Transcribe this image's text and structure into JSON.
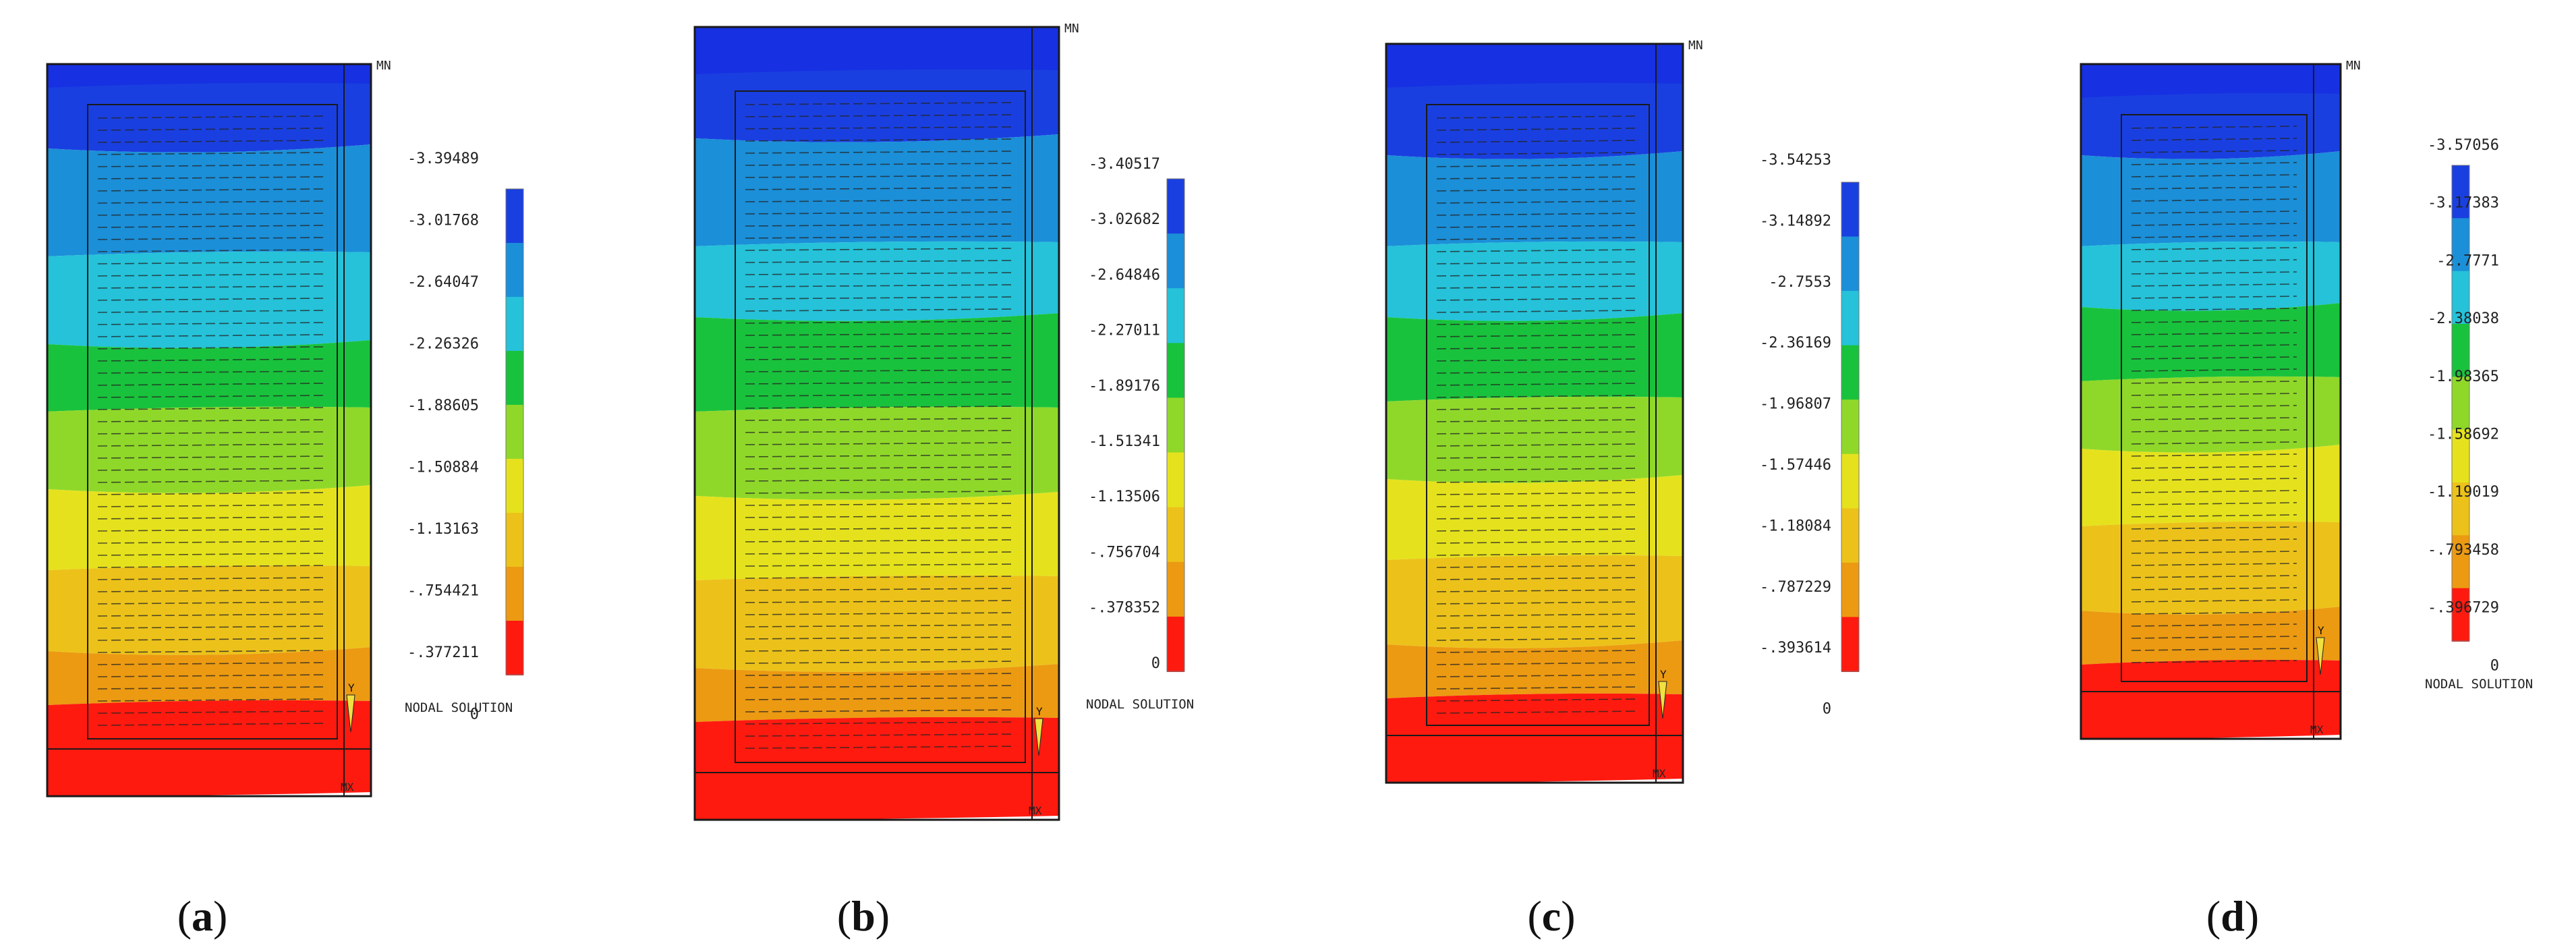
{
  "colors": {
    "bands": [
      "#1a3fe0",
      "#1b8fd8",
      "#25c2d9",
      "#19c23c",
      "#8fd82a",
      "#e5e21d",
      "#ecc21a",
      "#ec9a12",
      "#ff1a10"
    ],
    "top_blue": "#1630e2",
    "line": "#1a1a1a"
  },
  "panels": [
    {
      "id": "a",
      "label_open": "(",
      "label_letter": "a",
      "label_close": ")",
      "top_tag": "MN",
      "bottom_tag": "MX",
      "axis_label": "Y",
      "legend_values": [
        "-3.39489",
        "-3.01768",
        "-2.64047",
        "-2.26326",
        "-1.88605",
        "-1.50884",
        "-1.13163",
        "-.754421",
        "-.377211",
        "0"
      ],
      "legend_title": "NODAL SOLUTION"
    },
    {
      "id": "b",
      "label_open": "(",
      "label_letter": "b",
      "label_close": ")",
      "top_tag": "MN",
      "bottom_tag": "MX",
      "axis_label": "Y",
      "legend_values": [
        "-3.40517",
        "-3.02682",
        "-2.64846",
        "-2.27011",
        "-1.89176",
        "-1.51341",
        "-1.13506",
        "-.756704",
        "-.378352",
        "0"
      ],
      "legend_title": "NODAL SOLUTION"
    },
    {
      "id": "c",
      "label_open": "(",
      "label_letter": "c",
      "label_close": ")",
      "top_tag": "MN",
      "bottom_tag": "MX",
      "axis_label": "Y",
      "legend_values": [
        "-3.54253",
        "-3.14892",
        "-2.7553",
        "-2.36169",
        "-1.96807",
        "-1.57446",
        "-1.18084",
        "-.787229",
        "-.393614",
        "0"
      ],
      "legend_title": ""
    },
    {
      "id": "d",
      "label_open": "(",
      "label_letter": "d",
      "label_close": ")",
      "top_tag": "MN",
      "bottom_tag": "MX",
      "axis_label": "Y",
      "legend_values": [
        "-3.57056",
        "-3.17383",
        "-2.7771",
        "-2.38038",
        "-1.98365",
        "-1.58692",
        "-1.19019",
        "-.793458",
        "-.396729",
        "0"
      ],
      "legend_title": "NODAL SOLUTION"
    }
  ]
}
